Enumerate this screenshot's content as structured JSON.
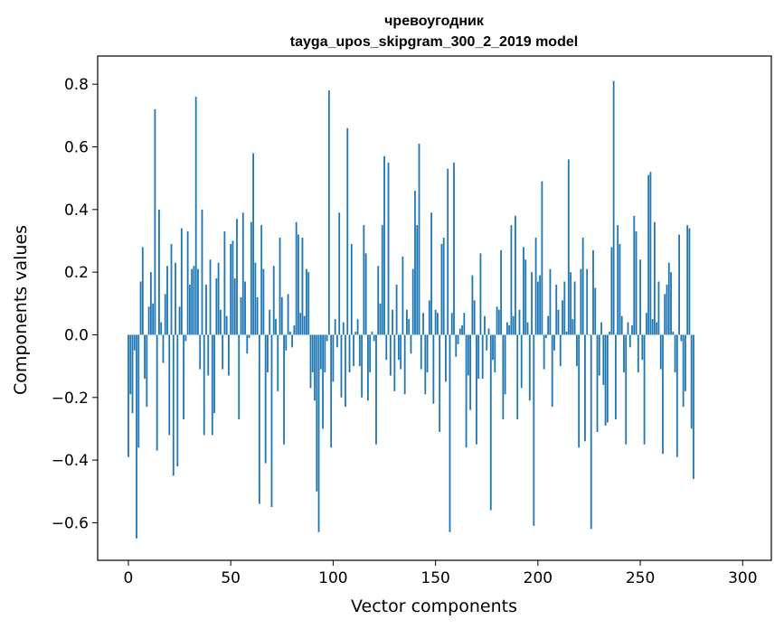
{
  "chart_data": {
    "type": "bar",
    "title": "чревоугодник",
    "subtitle": "tayga_upos_skipgram_300_2_2019 model",
    "xlabel": "Vector components",
    "ylabel": "Components values",
    "xlim": [
      -15,
      314
    ],
    "ylim": [
      -0.72,
      0.89
    ],
    "xticks": [
      0,
      50,
      100,
      150,
      200,
      250,
      300
    ],
    "xtick_labels": [
      "0",
      "50",
      "100",
      "150",
      "200",
      "250",
      "300"
    ],
    "yticks": [
      -0.6,
      -0.4,
      -0.2,
      0.0,
      0.2,
      0.4,
      0.6,
      0.8
    ],
    "ytick_labels": [
      "−0.6",
      "−0.4",
      "−0.2",
      "0.0",
      "0.2",
      "0.4",
      "0.6",
      "0.8"
    ],
    "bar_color": "#1f77b4",
    "grid": false,
    "legend": "none",
    "values": [
      -0.39,
      -0.19,
      -0.25,
      -0.05,
      -0.65,
      -0.36,
      0.17,
      0.28,
      -0.14,
      -0.23,
      0.09,
      0.2,
      0.1,
      0.72,
      -0.37,
      0.4,
      0.04,
      -0.09,
      0.13,
      0.22,
      -0.32,
      0.29,
      -0.45,
      0.23,
      -0.42,
      0.09,
      0.34,
      -0.27,
      -0.02,
      0.33,
      0.16,
      0.21,
      0.22,
      0.76,
      0.21,
      -0.11,
      0.4,
      -0.32,
      0.16,
      -0.13,
      0.24,
      -0.32,
      -0.25,
      0.18,
      0.23,
      0.08,
      -0.11,
      0.33,
      0.06,
      -0.13,
      0.29,
      0.3,
      0.18,
      0.37,
      -0.27,
      0.12,
      0.39,
      0.17,
      -0.06,
      -0.01,
      0.36,
      0.58,
      0.23,
      0.12,
      -0.54,
      0.35,
      0.21,
      -0.41,
      -0.12,
      0.08,
      -0.55,
      0.22,
      0.05,
      -0.18,
      0.31,
      0.12,
      -0.35,
      -0.05,
      0.13,
      0.01,
      -0.04,
      0.03,
      0.36,
      0.32,
      0.07,
      0.31,
      0.06,
      0.21,
      0.2,
      -0.17,
      -0.12,
      -0.21,
      -0.5,
      -0.63,
      -0.11,
      -0.3,
      -0.12,
      -0.02,
      0.78,
      -0.36,
      -0.15,
      0.05,
      -0.04,
      0.39,
      -0.2,
      0.04,
      -0.23,
      0.66,
      -0.12,
      0.29,
      -0.1,
      0.01,
      0.05,
      -0.1,
      -0.2,
      0.35,
      0.26,
      -0.21,
      -0.12,
      0.01,
      -0.02,
      -0.35,
      0.22,
      0.1,
      0.35,
      0.57,
      -0.08,
      0.55,
      -0.13,
      0.08,
      -0.18,
      0.16,
      -0.08,
      -0.11,
      0.25,
      -0.19,
      0.08,
      0.05,
      -0.06,
      0.21,
      0.46,
      0.35,
      0.61,
      -0.11,
      0.07,
      -0.19,
      -0.12,
      0.11,
      0.39,
      -0.22,
      0.08,
      0.07,
      -0.31,
      0.29,
      0.31,
      -0.15,
      0.53,
      -0.63,
      0.07,
      0.55,
      -0.07,
      -0.03,
      0.02,
      0.03,
      0.07,
      -0.36,
      -0.13,
      -0.24,
      0.19,
      0.11,
      -0.35,
      -0.14,
      0.26,
      -0.14,
      0.06,
      -0.05,
      0.02,
      -0.56,
      -0.08,
      -0.12,
      0.09,
      0.08,
      0.27,
      -0.27,
      -0.19,
      0.04,
      0.03,
      0.35,
      0.06,
      0.38,
      -0.27,
      0.08,
      -0.17,
      0.28,
      0.24,
      0.04,
      -0.21,
      0.2,
      -0.61,
      0.31,
      0.17,
      0.19,
      0.49,
      -0.11,
      -0.01,
      0.06,
      0.21,
      -0.23,
      -0.05,
      0.16,
      0.08,
      -0.1,
      0.11,
      0.17,
      0.01,
      0.56,
      0.2,
      0.05,
      0.17,
      -0.1,
      -0.36,
      0.21,
      0.31,
      -0.34,
      0.21,
      0.0,
      -0.62,
      0.27,
      0.15,
      -0.31,
      -0.13,
      0.04,
      -0.16,
      -0.29,
      -0.28,
      0.01,
      0.28,
      0.81,
      -0.27,
      0.35,
      0.29,
      0.06,
      -0.12,
      -0.35,
      0.04,
      -0.04,
      0.03,
      0.38,
      0.33,
      -0.12,
      0.24,
      -0.08,
      -0.35,
      0.07,
      0.51,
      0.52,
      0.05,
      0.36,
      0.04,
      0.17,
      -0.11,
      -0.38,
      0.13,
      0.16,
      0.23,
      0.2,
      0.01,
      -0.12,
      -0.39,
      0.32,
      -0.02,
      -0.23,
      -0.18,
      0.35,
      0.34,
      -0.3,
      -0.46
    ]
  }
}
